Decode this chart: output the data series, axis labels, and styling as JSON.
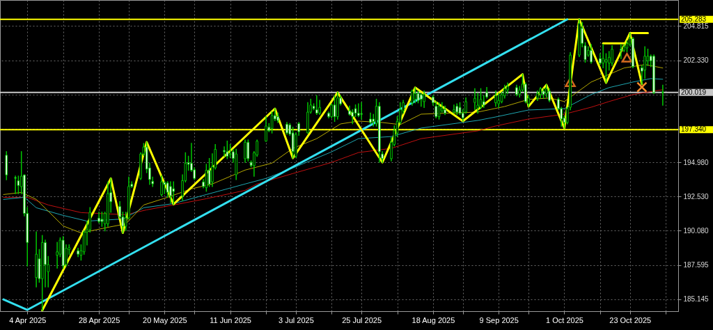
{
  "chart_data": {
    "type": "candlestick",
    "xlim": [
      "2025-03-27",
      "2025-11-07"
    ],
    "ylim": [
      184.29,
      206.67
    ],
    "xticks": [
      {
        "value": "2025-04-04",
        "label": "4 Apr 2025"
      },
      {
        "value": "2025-04-16",
        "label": null
      },
      {
        "value": "2025-04-28",
        "label": "28 Apr 2025"
      },
      {
        "value": "2025-05-08",
        "label": null
      },
      {
        "value": "2025-05-20",
        "label": "20 May 2025"
      },
      {
        "value": "2025-05-30",
        "label": null
      },
      {
        "value": "2025-06-11",
        "label": "11 Jun 2025"
      },
      {
        "value": "2025-06-23",
        "label": null
      },
      {
        "value": "2025-07-03",
        "label": "3 Jul 2025"
      },
      {
        "value": "2025-07-15",
        "label": null
      },
      {
        "value": "2025-07-25",
        "label": "25 Jul 2025"
      },
      {
        "value": "2025-08-06",
        "label": null
      },
      {
        "value": "2025-08-18",
        "label": "18 Aug 2025"
      },
      {
        "value": "2025-08-28",
        "label": null
      },
      {
        "value": "2025-09-09",
        "label": "9 Sep 2025"
      },
      {
        "value": "2025-09-19",
        "label": null
      },
      {
        "value": "2025-10-01",
        "label": "1 Oct 2025"
      },
      {
        "value": "2025-10-13",
        "label": null
      },
      {
        "value": "2025-10-23",
        "label": "23 Oct 2025"
      },
      {
        "value": "2025-11-04",
        "label": null
      }
    ],
    "yticks": [
      185.145,
      187.595,
      {
        "value": 190.08,
        "label": "190.080"
      },
      {
        "value": 192.53,
        "label": "192.530"
      },
      {
        "value": 194.98,
        "label": "194.980"
      },
      {
        "value": 197.43,
        "label": null
      },
      {
        "value": 199.88,
        "label": null
      },
      {
        "value": 202.33,
        "label": "202.330"
      },
      204.815
    ],
    "grid": true,
    "ref_lines": [
      {
        "axis": "y",
        "value": 205.283,
        "label": "205.283",
        "color": "#ffff00"
      },
      {
        "axis": "y",
        "value": 200.019,
        "label": "200.019",
        "color": "#c8c8c8"
      },
      {
        "axis": "y",
        "value": 197.34,
        "label": "197.340",
        "color": "#ffff00"
      }
    ],
    "series": [
      {
        "type": "line",
        "color": "#c01010",
        "x": [
          "2025-03-27",
          "2025-04-04",
          "2025-04-11",
          "2025-04-22",
          "2025-05-07",
          "2025-05-14",
          "2025-05-23",
          "2025-06-03",
          "2025-06-16",
          "2025-06-20",
          "2025-07-02",
          "2025-07-15",
          "2025-07-24",
          "2025-08-04",
          "2025-08-14",
          "2025-09-02",
          "2025-09-08",
          "2025-09-19",
          "2025-10-01",
          "2025-10-10",
          "2025-10-16",
          "2025-10-24",
          "2025-11-03"
        ],
        "values": [
          192.48,
          192.48,
          191.93,
          191.38,
          191.23,
          191.58,
          191.93,
          192.38,
          192.98,
          193.44,
          194.19,
          194.99,
          195.7,
          196.0,
          196.7,
          197.26,
          197.61,
          198.11,
          198.46,
          198.96,
          199.37,
          199.87,
          200.22
        ]
      },
      {
        "type": "line",
        "color": "#1ea5b0",
        "x": [
          "2025-03-27",
          "2025-04-03",
          "2025-04-07",
          "2025-04-16",
          "2025-04-24",
          "2025-05-06",
          "2025-05-13",
          "2025-05-23",
          "2025-06-03",
          "2025-06-16",
          "2025-06-23",
          "2025-07-02",
          "2025-07-15",
          "2025-07-24",
          "2025-08-04",
          "2025-08-14",
          "2025-09-02",
          "2025-09-08",
          "2025-09-19",
          "2025-10-01",
          "2025-10-10",
          "2025-10-16",
          "2025-10-24",
          "2025-10-30",
          "2025-11-03"
        ],
        "values": [
          192.33,
          192.48,
          191.73,
          191.18,
          190.77,
          190.92,
          191.73,
          192.03,
          192.68,
          193.44,
          193.84,
          194.59,
          195.75,
          196.7,
          196.85,
          197.46,
          198.01,
          198.26,
          198.76,
          198.86,
          199.87,
          200.37,
          200.77,
          201.02,
          200.97
        ]
      },
      {
        "type": "line",
        "color": "#b5a800",
        "x": [
          "2025-03-27",
          "2025-04-02",
          "2025-04-07",
          "2025-04-16",
          "2025-04-22",
          "2025-05-01",
          "2025-05-07",
          "2025-05-13",
          "2025-05-21",
          "2025-05-29",
          "2025-06-05",
          "2025-06-16",
          "2025-06-25",
          "2025-07-02",
          "2025-07-10",
          "2025-07-18",
          "2025-07-24",
          "2025-08-01",
          "2025-08-07",
          "2025-08-14",
          "2025-09-02",
          "2025-09-11",
          "2025-09-19",
          "2025-09-26",
          "2025-10-01",
          "2025-10-10",
          "2025-10-21",
          "2025-10-28",
          "2025-11-03"
        ],
        "values": [
          192.68,
          192.83,
          192.33,
          190.42,
          189.92,
          190.32,
          190.57,
          191.93,
          192.48,
          193.09,
          193.44,
          194.44,
          194.94,
          196.0,
          196.7,
          197.76,
          197.96,
          197.86,
          197.71,
          198.46,
          198.61,
          199.01,
          199.52,
          199.62,
          199.37,
          200.77,
          201.78,
          202.03,
          201.78
        ]
      },
      {
        "type": "line",
        "color": "#33e0f0",
        "x": [
          "2025-03-27",
          "2025-04-04",
          "2025-10-02"
        ],
        "values": [
          185.14,
          184.39,
          205.28
        ]
      },
      {
        "type": "line",
        "color": "#ffff00",
        "x": [
          "2025-04-09",
          "2025-05-02",
          "2025-05-06",
          "2025-05-14",
          "2025-05-23",
          "2025-06-26",
          "2025-07-02",
          "2025-07-17",
          "2025-08-01",
          "2025-08-12",
          "2025-08-28",
          "2025-09-17",
          "2025-09-19",
          "2025-09-25",
          "2025-10-01",
          "2025-10-06",
          "2025-10-15",
          "2025-10-23",
          "2025-10-27"
        ],
        "values": [
          184.35,
          193.84,
          189.92,
          196.45,
          191.98,
          198.86,
          195.3,
          200.02,
          194.99,
          200.37,
          197.96,
          201.33,
          199.01,
          200.57,
          197.46,
          205.28,
          200.72,
          204.29,
          200.62
        ]
      },
      {
        "type": "line",
        "color": "#ffff00",
        "x": [
          "2025-10-14",
          "2025-10-22"
        ],
        "values": [
          203.55,
          203.55
        ]
      },
      {
        "type": "line",
        "color": "#ffff00",
        "x": [
          "2025-10-23",
          "2025-10-29"
        ],
        "values": [
          204.29,
          204.29
        ]
      },
      {
        "type": "scatter",
        "marker": "triangle",
        "color": "#d2691e",
        "x": [
          "2025-10-03",
          "2025-10-22"
        ],
        "values": [
          200.76,
          202.52
        ]
      },
      {
        "type": "scatter",
        "marker": "cross",
        "color": "#ff8c28",
        "x": [
          "2025-10-27"
        ],
        "values": [
          200.41
        ]
      },
      {
        "color": "#00c800",
        "x": [
          "2025-03-28",
          "2025-03-31",
          "2025-04-01",
          "2025-04-02",
          "2025-04-03",
          "2025-04-04",
          "2025-04-07",
          "2025-04-08",
          "2025-04-09",
          "2025-04-10",
          "2025-04-11",
          "2025-04-14",
          "2025-04-15",
          "2025-04-16",
          "2025-04-17",
          "2025-04-18",
          "2025-04-21",
          "2025-04-22",
          "2025-04-23",
          "2025-04-24",
          "2025-04-25",
          "2025-04-28",
          "2025-04-29",
          "2025-04-30",
          "2025-05-01",
          "2025-05-02",
          "2025-05-05",
          "2025-05-06",
          "2025-05-07",
          "2025-05-08",
          "2025-05-09",
          "2025-05-12",
          "2025-05-13",
          "2025-05-14",
          "2025-05-15",
          "2025-05-16",
          "2025-05-19",
          "2025-05-20",
          "2025-05-21",
          "2025-05-22",
          "2025-05-23",
          "2025-05-26",
          "2025-05-27",
          "2025-05-28",
          "2025-05-29",
          "2025-05-30",
          "2025-06-02",
          "2025-06-03",
          "2025-06-04",
          "2025-06-05",
          "2025-06-06",
          "2025-06-09",
          "2025-06-10",
          "2025-06-11",
          "2025-06-12",
          "2025-06-13",
          "2025-06-16",
          "2025-06-17",
          "2025-06-18",
          "2025-06-19",
          "2025-06-20",
          "2025-06-23",
          "2025-06-24",
          "2025-06-25",
          "2025-06-26",
          "2025-06-27",
          "2025-06-30",
          "2025-07-01",
          "2025-07-02",
          "2025-07-03",
          "2025-07-04",
          "2025-07-07",
          "2025-07-08",
          "2025-07-09",
          "2025-07-10",
          "2025-07-11",
          "2025-07-14",
          "2025-07-15",
          "2025-07-16",
          "2025-07-17",
          "2025-07-18",
          "2025-07-21",
          "2025-07-22",
          "2025-07-23",
          "2025-07-24",
          "2025-07-25",
          "2025-07-28",
          "2025-07-29",
          "2025-07-30",
          "2025-07-31",
          "2025-08-01",
          "2025-08-04",
          "2025-08-05",
          "2025-08-06",
          "2025-08-07",
          "2025-08-08",
          "2025-08-11",
          "2025-08-12",
          "2025-08-13",
          "2025-08-14",
          "2025-08-15",
          "2025-08-18",
          "2025-08-19",
          "2025-08-20",
          "2025-08-21",
          "2025-08-22",
          "2025-08-25",
          "2025-08-26",
          "2025-08-27",
          "2025-08-28",
          "2025-08-29",
          "2025-09-01",
          "2025-09-02",
          "2025-09-03",
          "2025-09-04",
          "2025-09-05",
          "2025-09-08",
          "2025-09-09",
          "2025-09-10",
          "2025-09-11",
          "2025-09-12",
          "2025-09-15",
          "2025-09-16",
          "2025-09-17",
          "2025-09-18",
          "2025-09-19",
          "2025-09-22",
          "2025-09-23",
          "2025-09-24",
          "2025-09-25",
          "2025-09-26",
          "2025-09-29",
          "2025-09-30",
          "2025-10-01",
          "2025-10-02",
          "2025-10-03",
          "2025-10-06",
          "2025-10-07",
          "2025-10-08",
          "2025-10-09",
          "2025-10-10",
          "2025-10-13",
          "2025-10-14",
          "2025-10-15",
          "2025-10-16",
          "2025-10-17",
          "2025-10-20",
          "2025-10-21",
          "2025-10-22",
          "2025-10-23",
          "2025-10-24",
          "2025-10-27",
          "2025-10-28",
          "2025-10-29",
          "2025-10-30",
          "2025-10-31",
          "2025-11-03"
        ],
        "ohlc": [
          [
            195.51,
            195.76,
            193.75,
            194.09
          ],
          [
            193.9,
            194.0,
            192.75,
            193.85
          ],
          [
            193.67,
            194.0,
            192.75,
            193.33
          ],
          [
            193.25,
            195.76,
            192.75,
            194.0
          ],
          [
            194.09,
            194.09,
            191.15,
            191.32
          ],
          [
            191.32,
            191.74,
            187.55,
            189.23
          ],
          [
            186.71,
            189.98,
            186.04,
            188.39
          ],
          [
            188.06,
            188.72,
            186.38,
            186.63
          ],
          [
            186.63,
            189.73,
            184.35,
            189.23
          ],
          [
            189.23,
            189.4,
            186.04,
            187.64
          ],
          [
            187.13,
            188.22,
            186.04,
            187.64
          ],
          [
            188.31,
            189.23,
            187.39,
            188.56
          ],
          [
            188.39,
            189.56,
            188.22,
            189.4
          ],
          [
            189.4,
            189.65,
            187.39,
            187.55
          ],
          [
            187.64,
            189.06,
            187.55,
            188.81
          ],
          [
            188.72,
            189.06,
            188.39,
            188.86
          ],
          [
            188.64,
            188.81,
            188.22,
            188.39
          ],
          [
            188.31,
            189.06,
            187.97,
            188.64
          ],
          [
            188.56,
            190.07,
            188.39,
            189.98
          ],
          [
            189.98,
            190.74,
            189.06,
            190.15
          ],
          [
            190.15,
            191.74,
            189.98,
            191.41
          ],
          [
            190.99,
            191.41,
            190.65,
            190.74
          ],
          [
            190.9,
            191.41,
            190.4,
            190.74
          ],
          [
            190.57,
            191.41,
            190.07,
            191.32
          ],
          [
            190.57,
            193.58,
            190.4,
            192.75
          ],
          [
            192.83,
            193.84,
            191.41,
            192.16
          ],
          [
            191.82,
            192.16,
            190.99,
            191.07
          ],
          [
            191.07,
            191.41,
            189.92,
            190.4
          ],
          [
            190.4,
            191.4,
            190.1,
            191.0
          ],
          [
            191.0,
            193.93,
            190.91,
            193.26
          ],
          [
            193.42,
            193.59,
            193.2,
            193.26
          ],
          [
            193.84,
            195.68,
            193.76,
            195.6
          ],
          [
            195.6,
            196.35,
            195.5,
            196.1
          ],
          [
            196.1,
            196.45,
            194.26,
            194.51
          ],
          [
            194.6,
            194.93,
            193.42,
            193.76
          ],
          [
            193.63,
            193.93,
            193.26,
            193.45
          ],
          [
            192.67,
            194.01,
            192.59,
            193.59
          ],
          [
            193.55,
            193.63,
            192.75,
            193.4
          ],
          [
            193.51,
            193.6,
            192.5,
            192.84
          ],
          [
            193.26,
            193.59,
            192.1,
            192.59
          ],
          [
            193.1,
            193.59,
            191.98,
            192.9
          ],
          [
            192.59,
            194.09,
            192.25,
            193.68
          ],
          [
            193.68,
            195.68,
            193.59,
            194.93
          ],
          [
            194.98,
            195.43,
            194.43,
            194.85
          ],
          [
            194.93,
            196.35,
            194.35,
            194.43
          ],
          [
            194.46,
            194.6,
            193.76,
            193.84
          ],
          [
            193.59,
            193.76,
            193.17,
            193.26
          ],
          [
            193.17,
            194.85,
            192.92,
            194.43
          ],
          [
            194.43,
            195.27,
            193.26,
            193.42
          ],
          [
            193.59,
            195.6,
            193.26,
            194.68
          ],
          [
            194.6,
            196.27,
            194.51,
            195.93
          ],
          [
            195.85,
            196.1,
            195.43,
            195.76
          ],
          [
            195.76,
            196.52,
            195.27,
            195.43
          ],
          [
            195.55,
            196.27,
            195.35,
            195.6
          ],
          [
            195.76,
            195.93,
            195.0,
            195.27
          ],
          [
            194.1,
            195.93,
            193.76,
            195.6
          ],
          [
            195.26,
            196.6,
            195.0,
            196.44
          ],
          [
            196.44,
            196.6,
            195.1,
            195.26
          ],
          [
            195.0,
            195.1,
            194.68,
            194.76
          ],
          [
            194.76,
            195.77,
            194.0,
            195.68
          ],
          [
            195.52,
            196.6,
            195.43,
            196.52
          ],
          [
            196.52,
            198.28,
            196.52,
            197.61
          ],
          [
            197.52,
            197.78,
            197.2,
            197.27
          ],
          [
            197.44,
            198.61,
            197.11,
            198.36
          ],
          [
            198.36,
            198.86,
            198.0,
            198.11
          ],
          [
            198.28,
            198.53,
            197.86,
            198.0
          ],
          [
            197.74,
            197.86,
            197.02,
            197.11
          ],
          [
            197.69,
            197.78,
            196.94,
            197.02
          ],
          [
            197.11,
            197.52,
            195.3,
            195.77
          ],
          [
            195.43,
            197.11,
            195.35,
            197.0
          ],
          [
            197.78,
            197.86,
            196.94,
            197.2
          ],
          [
            197.11,
            199.28,
            197.11,
            198.61
          ],
          [
            198.61,
            199.53,
            198.53,
            199.12
          ],
          [
            199.03,
            199.2,
            198.78,
            198.86
          ],
          [
            198.78,
            199.79,
            198.45,
            198.53
          ],
          [
            198.53,
            199.45,
            198.45,
            198.95
          ],
          [
            198.53,
            198.61,
            198.2,
            198.28
          ],
          [
            198.28,
            199.2,
            198.2,
            199.12
          ],
          [
            199.12,
            199.79,
            197.94,
            198.28
          ],
          [
            198.28,
            200.02,
            198.11,
            199.62
          ],
          [
            199.62,
            199.79,
            199.12,
            199.2
          ],
          [
            198.7,
            199.03,
            198.4,
            198.45
          ],
          [
            198.6,
            198.78,
            197.78,
            198.28
          ],
          [
            198.86,
            199.12,
            198.28,
            198.53
          ],
          [
            198.53,
            199.2,
            198.28,
            198.36
          ],
          [
            198.5,
            199.28,
            198.11,
            198.45
          ],
          [
            198.11,
            198.53,
            197.77,
            197.86
          ],
          [
            198.11,
            198.44,
            197.61,
            197.94
          ],
          [
            197.77,
            199.53,
            197.61,
            199.03
          ],
          [
            199.03,
            199.28,
            195.01,
            195.76
          ],
          [
            195.6,
            195.76,
            194.99,
            195.26
          ],
          [
            195.26,
            196.77,
            195.1,
            196.43
          ],
          [
            196.27,
            197.61,
            196.18,
            197.27
          ],
          [
            197.1,
            198.28,
            196.85,
            197.94
          ],
          [
            197.86,
            199.28,
            197.77,
            198.78
          ],
          [
            198.7,
            199.45,
            198.53,
            199.28
          ],
          [
            199.28,
            200.2,
            199.11,
            200.12
          ],
          [
            199.53,
            200.37,
            199.28,
            199.95
          ],
          [
            199.95,
            200.1,
            199.28,
            199.45
          ],
          [
            199.87,
            199.95,
            199.03,
            199.53
          ],
          [
            199.36,
            200.12,
            198.95,
            199.87
          ],
          [
            199.7,
            199.78,
            199.11,
            199.28
          ],
          [
            199.03,
            199.36,
            198.19,
            198.28
          ],
          [
            198.28,
            199.28,
            198.11,
            199.03
          ],
          [
            198.7,
            199.28,
            198.61,
            198.87
          ],
          [
            198.78,
            199.03,
            198.44,
            198.53
          ],
          [
            198.61,
            199.11,
            198.53,
            198.78
          ],
          [
            199.03,
            199.2,
            198.44,
            198.61
          ],
          [
            198.95,
            199.28,
            198.44,
            198.53
          ],
          [
            198.53,
            198.78,
            197.96,
            198.2
          ],
          [
            198.61,
            199.62,
            198.53,
            199.36
          ],
          [
            199.3,
            200.29,
            198.8,
            199.6
          ],
          [
            198.9,
            199.95,
            198.53,
            199.11
          ],
          [
            198.95,
            200.29,
            198.86,
            199.53
          ],
          [
            199.36,
            199.78,
            198.95,
            199.11
          ],
          [
            200.03,
            200.37,
            199.62,
            199.7
          ],
          [
            199.28,
            200.12,
            199.03,
            199.78
          ],
          [
            199.2,
            199.95,
            198.95,
            199.45
          ],
          [
            199.36,
            200.03,
            199.28,
            199.87
          ],
          [
            199.78,
            200.54,
            199.62,
            200.29
          ],
          [
            200.2,
            200.7,
            199.95,
            200.45
          ],
          [
            200.37,
            200.54,
            199.78,
            199.87
          ],
          [
            199.9,
            200.45,
            199.7,
            200.2
          ],
          [
            200.2,
            201.33,
            200.12,
            200.62
          ],
          [
            200.62,
            200.7,
            199.28,
            199.36
          ],
          [
            199.2,
            199.78,
            199.01,
            199.62
          ],
          [
            199.62,
            200.12,
            199.45,
            199.95
          ],
          [
            199.87,
            200.37,
            199.62,
            200.29
          ],
          [
            200.12,
            200.29,
            199.62,
            199.87
          ],
          [
            199.95,
            200.57,
            199.7,
            200.29
          ],
          [
            200.12,
            200.29,
            199.36,
            199.45
          ],
          [
            199.53,
            199.62,
            198.78,
            198.86
          ],
          [
            198.86,
            198.95,
            197.6,
            198.11
          ],
          [
            198.19,
            198.28,
            197.46,
            197.86
          ],
          [
            197.86,
            198.95,
            197.77,
            198.86
          ],
          [
            198.95,
            202.88,
            198.78,
            202.71
          ],
          [
            202.71,
            205.28,
            202.6,
            204.98
          ],
          [
            204.64,
            205.05,
            203.3,
            203.55
          ],
          [
            203.38,
            203.6,
            202.2,
            202.38
          ],
          [
            202.71,
            203.3,
            202.63,
            203.05
          ],
          [
            203.05,
            203.47,
            202.13,
            202.21
          ],
          [
            202.46,
            202.8,
            202.05,
            202.13
          ],
          [
            202.13,
            203.47,
            201.8,
            202.46
          ],
          [
            202.21,
            202.8,
            200.72,
            202.38
          ],
          [
            202.13,
            202.96,
            201.63,
            202.55
          ],
          [
            202.13,
            203.38,
            201.96,
            203.13
          ],
          [
            203.13,
            203.47,
            202.46,
            203.05
          ],
          [
            203.05,
            203.47,
            202.96,
            203.3
          ],
          [
            203.22,
            203.72,
            202.96,
            203.55
          ],
          [
            203.47,
            204.29,
            203.38,
            203.89
          ],
          [
            203.89,
            203.97,
            201.8,
            201.88
          ],
          [
            201.8,
            201.96,
            200.62,
            201.55
          ],
          [
            201.63,
            203.3,
            201.04,
            202.63
          ],
          [
            202.3,
            203.13,
            201.96,
            202.63
          ],
          [
            202.63,
            202.71,
            201.88,
            202.3
          ],
          [
            202.63,
            202.71,
            199.95,
            200.0
          ],
          [
            200.0,
            200.54,
            199.11,
            200.02
          ]
        ],
        "colors": [
          "#ffffff",
          "#ffffff",
          "#ffffff",
          "#000000",
          "#ffffff",
          "#ffffff",
          "#000000",
          "#ffffff",
          "#000000",
          "#ffffff",
          "#000000",
          "#000000",
          "#000000",
          "#ffffff",
          "#000000",
          "#000000",
          "#ffffff",
          "#000000",
          "#000000",
          "#000000",
          "#000000",
          "#ffffff",
          "#ffffff",
          "#000000",
          "#000000",
          "#ffffff",
          "#ffffff",
          "#ffffff",
          "#000000",
          "#000000",
          "#ffffff",
          "#000000",
          "#000000",
          "#ffffff",
          "#ffffff",
          "#ffffff",
          "#000000",
          "#ffffff",
          "#ffffff",
          "#ffffff",
          "#ffffff",
          "#000000",
          "#000000",
          "#ffffff",
          "#ffffff",
          "#ffffff",
          "#ffffff",
          "#000000",
          "#ffffff",
          "#000000",
          "#000000",
          "#ffffff",
          "#ffffff",
          "#000000",
          "#ffffff",
          "#000000",
          "#000000",
          "#ffffff",
          "#ffffff",
          "#000000",
          "#000000",
          "#000000",
          "#ffffff",
          "#000000",
          "#ffffff",
          "#ffffff",
          "#ffffff",
          "#ffffff",
          "#ffffff",
          "#000000",
          "#ffffff",
          "#000000",
          "#000000",
          "#ffffff",
          "#ffffff",
          "#000000",
          "#ffffff",
          "#000000",
          "#ffffff",
          "#000000",
          "#ffffff",
          "#ffffff",
          "#ffffff",
          "#ffffff",
          "#ffffff",
          "#ffffff",
          "#ffffff",
          "#ffffff",
          "#000000",
          "#ffffff",
          "#ffffff",
          "#000000",
          "#000000",
          "#000000",
          "#000000",
          "#000000",
          "#000000",
          "#000000",
          "#ffffff",
          "#ffffff",
          "#000000",
          "#ffffff",
          "#ffffff",
          "#000000",
          "#000000",
          "#ffffff",
          "#000000",
          "#ffffff",
          "#ffffff",
          "#ffffff",
          "#000000",
          "#000000",
          "#000000",
          "#000000",
          "#ffffff",
          "#ffffff",
          "#000000",
          "#000000",
          "#000000",
          "#000000",
          "#000000",
          "#ffffff",
          "#000000",
          "#000000",
          "#ffffff",
          "#000000",
          "#000000",
          "#000000",
          "#ffffff",
          "#000000",
          "#ffffff",
          "#ffffff",
          "#ffffff",
          "#ffffff",
          "#000000",
          "#000000",
          "#000000",
          "#ffffff",
          "#ffffff",
          "#000000",
          "#ffffff",
          "#ffffff",
          "#000000",
          "#000000",
          "#000000",
          "#000000",
          "#ffffff",
          "#000000",
          "#000000",
          "#000000",
          "#ffffff",
          "#ffffff",
          "#000000",
          "#000000",
          "#ffffff",
          "#ffffff",
          "#000000"
        ]
      }
    ]
  }
}
